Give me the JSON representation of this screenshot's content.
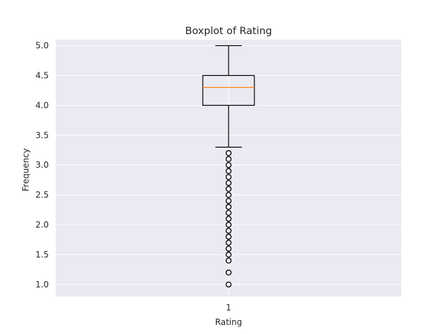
{
  "chart_data": {
    "type": "box",
    "title": "Boxplot of Rating",
    "xlabel": "Rating",
    "ylabel": "Frequency",
    "categories": [
      "1"
    ],
    "ylim": [
      0.8,
      5.1
    ],
    "yticks": [
      "1.0",
      "1.5",
      "2.0",
      "2.5",
      "3.0",
      "3.5",
      "4.0",
      "4.5",
      "5.0"
    ],
    "grid": true,
    "box": {
      "whisker_low": 3.3,
      "q1": 4.0,
      "median": 4.3,
      "q3": 4.5,
      "whisker_high": 5.0
    },
    "outliers": [
      3.2,
      3.1,
      3.0,
      2.9,
      2.8,
      2.7,
      2.6,
      2.5,
      2.4,
      2.3,
      2.2,
      2.1,
      2.0,
      1.9,
      1.8,
      1.7,
      1.6,
      1.5,
      1.4,
      1.2,
      1.0
    ],
    "colors": {
      "background": "#eaeaf2",
      "grid": "#ffffff",
      "box": "#000000",
      "median": "#ff7f0e"
    }
  }
}
